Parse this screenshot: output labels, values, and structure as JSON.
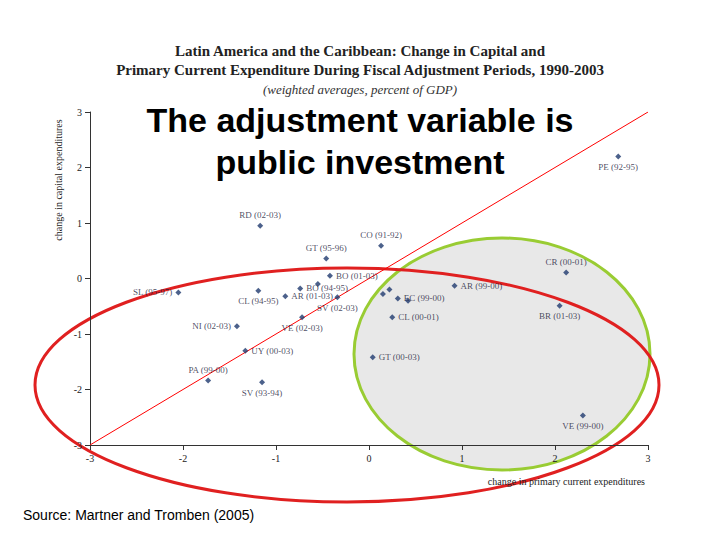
{
  "chart_data": {
    "type": "scatter",
    "title": "Latin America and the Caribbean: Change in Capital and\nPrimary Current Expenditure During Fiscal Adjustment Periods, 1990-2003",
    "subtitle": "(weighted averages, percent of GDP)",
    "heading": "The adjustment variable is\npublic investment",
    "source": "Source: Martner and Tromben (2005)",
    "xlabel": "change in primary current expenditures",
    "ylabel": "change in capital expenditures",
    "xlim": [
      -3,
      3
    ],
    "ylim": [
      -3,
      3
    ],
    "xticks": [
      -3,
      -2,
      -1,
      0,
      1,
      2,
      3
    ],
    "yticks": [
      -3,
      -2,
      -1,
      0,
      1,
      2,
      3
    ],
    "grid": false,
    "marker": "diamond",
    "color": "#1f3a6e",
    "x": [
      2.68,
      -1.17,
      -0.46,
      0.13,
      2.12,
      -0.42,
      -2.05,
      -1.19,
      -0.74,
      -0.9,
      -0.34,
      -0.72,
      -1.42,
      -1.33,
      -1.73,
      -1.15,
      0.92,
      0.31,
      0.25,
      0.04,
      2.05,
      2.3,
      0.22,
      0.42,
      0.15,
      -0.55
    ],
    "y": [
      2.2,
      0.95,
      0.36,
      0.59,
      0.11,
      0.05,
      -0.25,
      -0.22,
      -0.18,
      -0.32,
      -0.34,
      -0.7,
      -0.86,
      -1.3,
      -1.84,
      -1.87,
      -0.13,
      -0.36,
      -0.7,
      -1.42,
      -0.49,
      -2.47,
      -0.2,
      -0.4,
      -0.28,
      -0.1
    ],
    "labels": [
      "PE (92-95)",
      "RD (02-03)",
      "GT (95-96)",
      "CO (91-92)",
      "CR (00-01)",
      "BO (01-03)",
      "SL (95-97)",
      "CL (94-95)",
      "BO (94-95)",
      "AR (01-03)",
      "SV (02-03)",
      "VE (02-03)",
      "NI (02-03)",
      "UY (00-03)",
      "PA (99-00)",
      "SV (93-94)",
      "AR (99-00)",
      "EC (99-00)",
      "CL (00-01)",
      "GT (00-03)",
      "BR (01-03)",
      "VE (99-00)",
      null,
      null,
      null,
      null
    ],
    "reference_line": {
      "x": [
        -3,
        3
      ],
      "y": [
        -3,
        3
      ],
      "color": "#ff0000"
    }
  }
}
